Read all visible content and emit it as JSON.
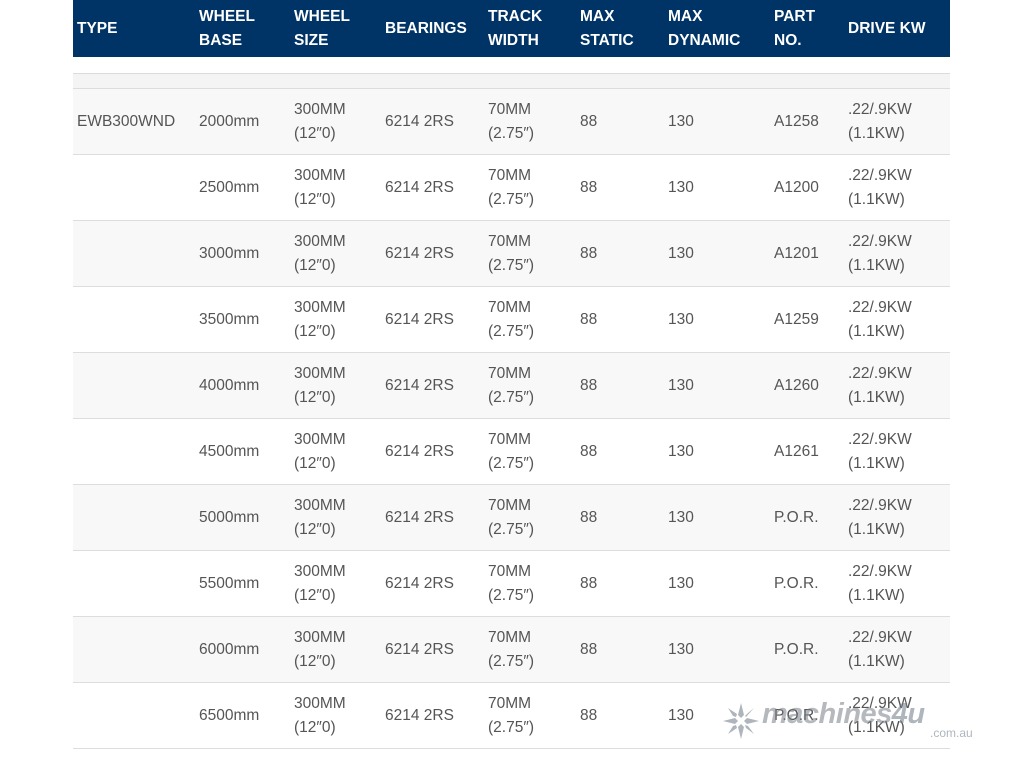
{
  "table": {
    "headers": [
      {
        "lines": [
          "TYPE"
        ]
      },
      {
        "lines": [
          "WHEEL",
          "BASE"
        ]
      },
      {
        "lines": [
          "WHEEL",
          "SIZE"
        ]
      },
      {
        "lines": [
          "BEARINGS"
        ]
      },
      {
        "lines": [
          "TRACK",
          "WIDTH"
        ]
      },
      {
        "lines": [
          "MAX",
          "STATIC"
        ]
      },
      {
        "lines": [
          "MAX",
          "DYNAMIC"
        ]
      },
      {
        "lines": [
          "PART",
          "NO."
        ]
      },
      {
        "lines": [
          "DRIVE  KW"
        ]
      }
    ],
    "rows": [
      {
        "type": "EWB300WND",
        "wheel_base": "2000mm",
        "wheel_size": [
          "300MM",
          "(12″0)"
        ],
        "bearings": "6214 2RS",
        "track_width": [
          "70MM",
          "(2.75″)"
        ],
        "max_static": "88",
        "max_dynamic": "130",
        "part_no": "A1258",
        "drive_kw": [
          ".22/.9KW",
          "(1.1KW)"
        ]
      },
      {
        "type": "",
        "wheel_base": "2500mm",
        "wheel_size": [
          "300MM",
          "(12″0)"
        ],
        "bearings": "6214 2RS",
        "track_width": [
          "70MM",
          "(2.75″)"
        ],
        "max_static": "88",
        "max_dynamic": "130",
        "part_no": "A1200",
        "drive_kw": [
          ".22/.9KW",
          "(1.1KW)"
        ]
      },
      {
        "type": "",
        "wheel_base": "3000mm",
        "wheel_size": [
          "300MM",
          "(12″0)"
        ],
        "bearings": "6214 2RS",
        "track_width": [
          "70MM",
          "(2.75″)"
        ],
        "max_static": "88",
        "max_dynamic": "130",
        "part_no": "A1201",
        "drive_kw": [
          ".22/.9KW",
          "(1.1KW)"
        ]
      },
      {
        "type": "",
        "wheel_base": "3500mm",
        "wheel_size": [
          "300MM",
          "(12″0)"
        ],
        "bearings": "6214 2RS",
        "track_width": [
          "70MM",
          "(2.75″)"
        ],
        "max_static": "88",
        "max_dynamic": "130",
        "part_no": "A1259",
        "drive_kw": [
          ".22/.9KW",
          "(1.1KW)"
        ]
      },
      {
        "type": "",
        "wheel_base": "4000mm",
        "wheel_size": [
          "300MM",
          "(12″0)"
        ],
        "bearings": "6214 2RS",
        "track_width": [
          "70MM",
          "(2.75″)"
        ],
        "max_static": "88",
        "max_dynamic": "130",
        "part_no": "A1260",
        "drive_kw": [
          ".22/.9KW",
          "(1.1KW)"
        ]
      },
      {
        "type": "",
        "wheel_base": "4500mm",
        "wheel_size": [
          "300MM",
          "(12″0)"
        ],
        "bearings": "6214 2RS",
        "track_width": [
          "70MM",
          "(2.75″)"
        ],
        "max_static": "88",
        "max_dynamic": "130",
        "part_no": "A1261",
        "drive_kw": [
          ".22/.9KW",
          "(1.1KW)"
        ]
      },
      {
        "type": "",
        "wheel_base": "5000mm",
        "wheel_size": [
          "300MM",
          "(12″0)"
        ],
        "bearings": "6214 2RS",
        "track_width": [
          "70MM",
          "(2.75″)"
        ],
        "max_static": "88",
        "max_dynamic": "130",
        "part_no": "P.O.R.",
        "drive_kw": [
          ".22/.9KW",
          "(1.1KW)"
        ]
      },
      {
        "type": "",
        "wheel_base": "5500mm",
        "wheel_size": [
          "300MM",
          "(12″0)"
        ],
        "bearings": "6214 2RS",
        "track_width": [
          "70MM",
          "(2.75″)"
        ],
        "max_static": "88",
        "max_dynamic": "130",
        "part_no": "P.O.R.",
        "drive_kw": [
          ".22/.9KW",
          "(1.1KW)"
        ]
      },
      {
        "type": "",
        "wheel_base": "6000mm",
        "wheel_size": [
          "300MM",
          "(12″0)"
        ],
        "bearings": "6214 2RS",
        "track_width": [
          "70MM",
          "(2.75″)"
        ],
        "max_static": "88",
        "max_dynamic": "130",
        "part_no": "P.O.R.",
        "drive_kw": [
          ".22/.9KW",
          "(1.1KW)"
        ]
      },
      {
        "type": "",
        "wheel_base": "6500mm",
        "wheel_size": [
          "300MM",
          "(12″0)"
        ],
        "bearings": "6214 2RS",
        "track_width": [
          "70MM",
          "(2.75″)"
        ],
        "max_static": "88",
        "max_dynamic": "130",
        "part_no": "P.O.R.",
        "drive_kw": [
          ".22/.9KW",
          "(1.1KW)"
        ]
      }
    ]
  },
  "colors": {
    "header_bg": "#003366",
    "header_text": "#ffffff",
    "body_text": "#555555",
    "row_alt": "#f8f8f8"
  },
  "watermark": {
    "brand": "machines",
    "brand_suffix": "4u",
    "domain": ".com.au",
    "icon": "snowflake-star-icon"
  }
}
